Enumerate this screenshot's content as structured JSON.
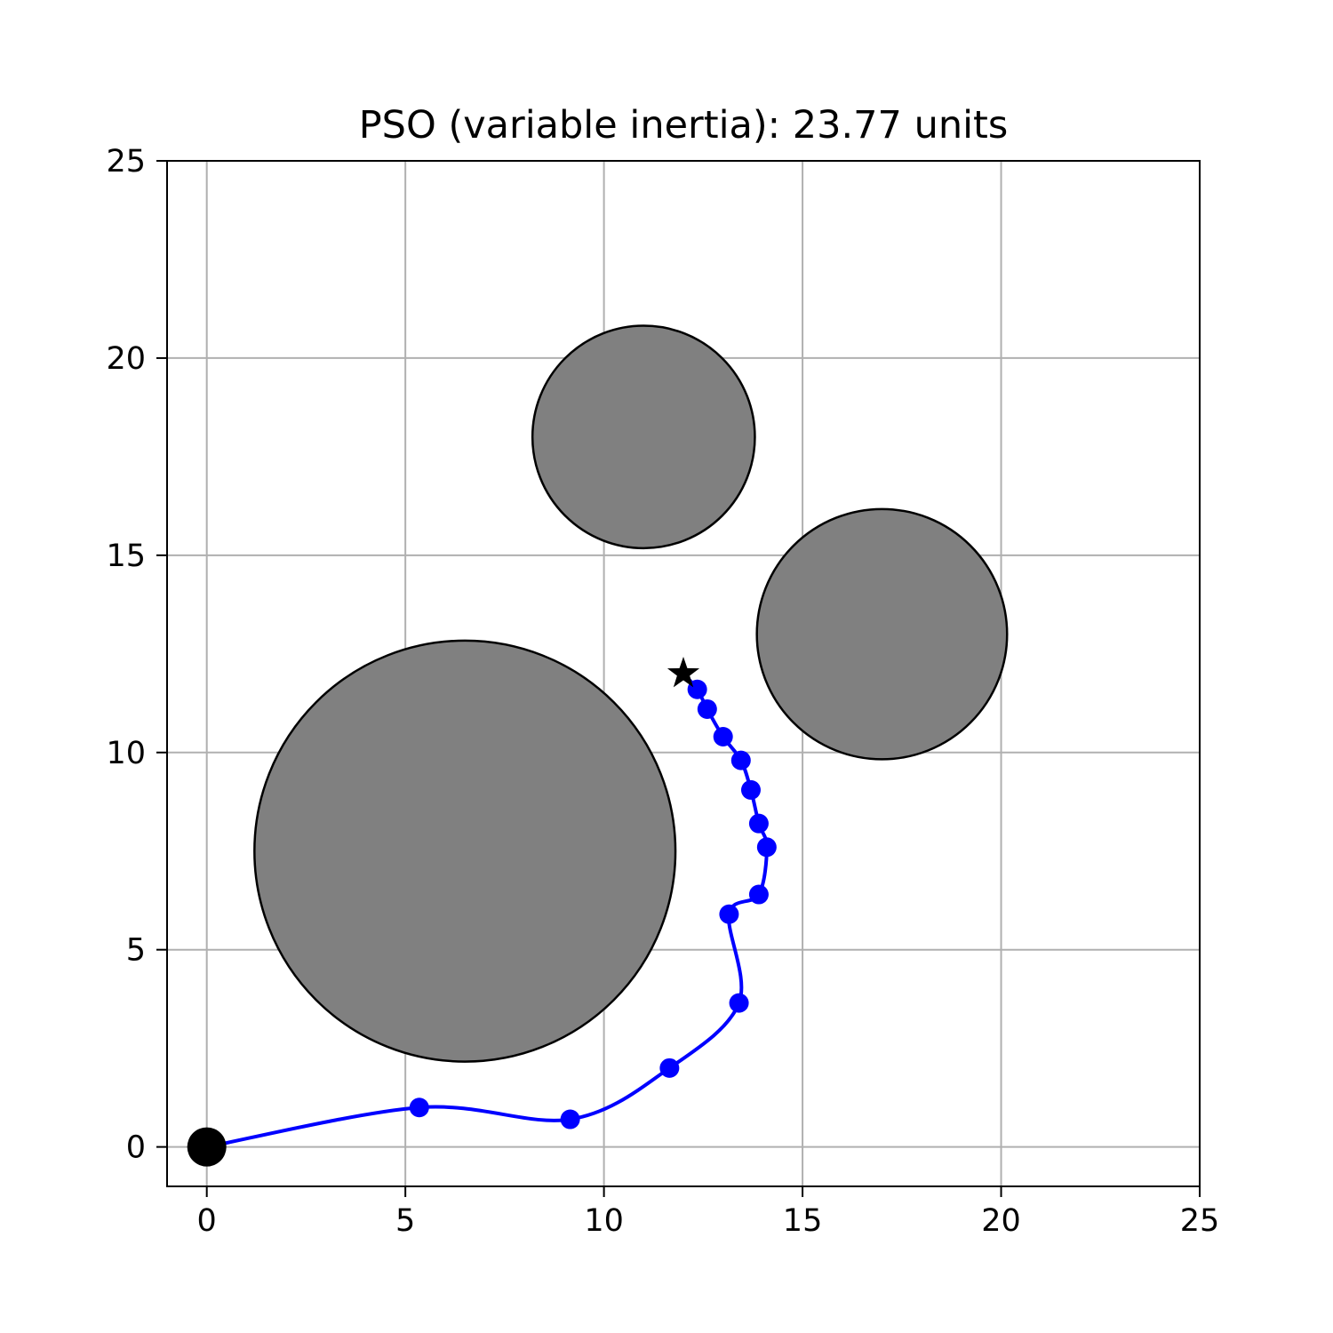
{
  "chart_data": {
    "type": "line",
    "title": "PSO (variable inertia): 23.77 units",
    "xlabel": "",
    "ylabel": "",
    "xlim": [
      -1,
      25
    ],
    "ylim": [
      -1,
      25
    ],
    "xticks": [
      0,
      5,
      10,
      15,
      20,
      25
    ],
    "yticks": [
      0,
      5,
      10,
      15,
      20,
      25
    ],
    "xtick_labels": [
      "0",
      "5",
      "10",
      "15",
      "20",
      "25"
    ],
    "ytick_labels": [
      "0",
      "5",
      "10",
      "15",
      "20",
      "25"
    ],
    "grid": true,
    "obstacles": [
      {
        "cx": 11.0,
        "cy": 18.0,
        "r": 2.8
      },
      {
        "cx": 17.0,
        "cy": 13.0,
        "r": 3.15
      },
      {
        "cx": 6.5,
        "cy": 7.5,
        "r": 5.3
      }
    ],
    "start": {
      "x": 0,
      "y": 0
    },
    "goal": {
      "x": 12,
      "y": 12
    },
    "waypoints": [
      {
        "x": 5.35,
        "y": 1.0
      },
      {
        "x": 9.15,
        "y": 0.7
      },
      {
        "x": 11.65,
        "y": 2.0
      },
      {
        "x": 13.4,
        "y": 3.65
      },
      {
        "x": 13.15,
        "y": 5.9
      },
      {
        "x": 13.9,
        "y": 6.4
      },
      {
        "x": 14.1,
        "y": 7.6
      },
      {
        "x": 13.9,
        "y": 8.2
      },
      {
        "x": 13.7,
        "y": 9.05
      },
      {
        "x": 13.45,
        "y": 9.8
      },
      {
        "x": 13.0,
        "y": 10.4
      },
      {
        "x": 12.6,
        "y": 11.1
      },
      {
        "x": 12.35,
        "y": 11.6
      }
    ],
    "colors": {
      "path": "#0000ff",
      "obstacle_fill": "#808080",
      "obstacle_edge": "#000000",
      "start": "#000000",
      "goal": "#000000",
      "grid": "#b0b0b0"
    }
  }
}
